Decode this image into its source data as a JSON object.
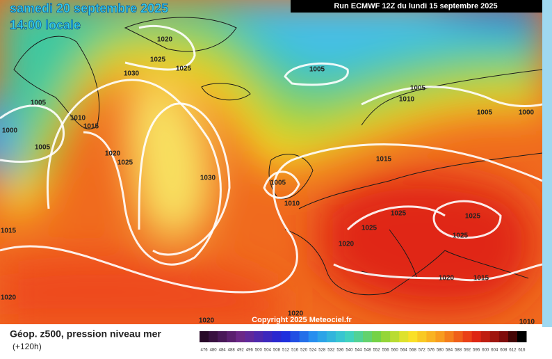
{
  "header": {
    "date": "samedi 20 septembre 2025",
    "time": "14:00 locale",
    "run": "Run ECMWF 12Z du lundi 15 septembre 2025"
  },
  "copyright": "Copyright 2025 Meteociel.fr",
  "legend": {
    "title": "Géop. z500, pression niveau mer",
    "subtitle": "(+120h)",
    "labels": [
      476,
      480,
      484,
      488,
      492,
      496,
      500,
      504,
      508,
      512,
      516,
      520,
      524,
      528,
      532,
      536,
      540,
      544,
      548,
      552,
      556,
      560,
      564,
      568,
      572,
      576,
      580,
      584,
      588,
      592,
      596,
      600,
      604,
      608,
      612,
      616
    ]
  },
  "isobars": [
    "1020",
    "1025",
    "1025",
    "1030",
    "1005",
    "1010",
    "1015",
    "1000",
    "1005",
    "1020",
    "1025",
    "1030",
    "1005",
    "1005",
    "1010",
    "1005",
    "1000",
    "1015",
    "1005",
    "1010",
    "1025",
    "1025",
    "1025",
    "1025",
    "1020",
    "1015",
    "1020",
    "1015",
    "1020",
    "1020",
    "1020",
    "1010"
  ]
}
